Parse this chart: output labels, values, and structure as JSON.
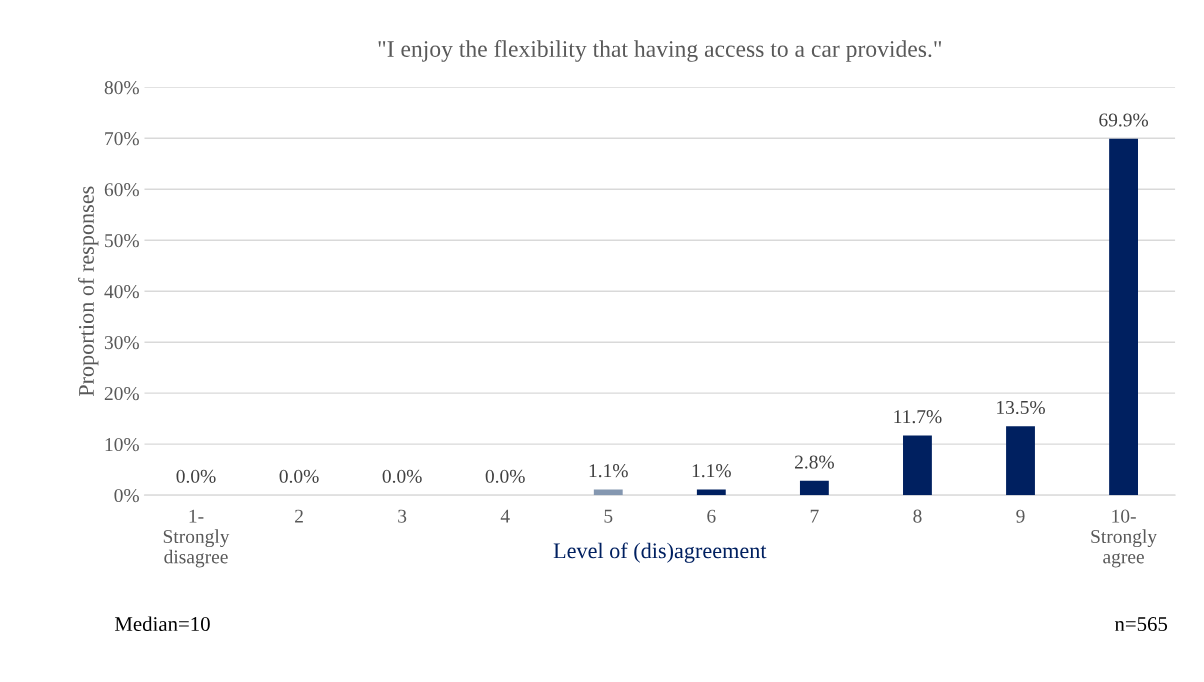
{
  "chart_data": {
    "type": "bar",
    "title": "\"I enjoy the flexibility that having access to a car provides.\"",
    "xlabel": "Level of (dis)agreement",
    "ylabel": "Proportion of responses",
    "categories": [
      "1-\nStrongly\ndisagree",
      "2",
      "3",
      "4",
      "5",
      "6",
      "7",
      "8",
      "9",
      "10-\nStrongly\nagree"
    ],
    "values": [
      0.0,
      0.0,
      0.0,
      0.0,
      1.1,
      1.1,
      2.8,
      11.7,
      13.5,
      69.9
    ],
    "value_labels": [
      "0.0%",
      "0.0%",
      "0.0%",
      "0.0%",
      "1.1%",
      "1.1%",
      "2.8%",
      "11.7%",
      "13.5%",
      "69.9%"
    ],
    "colors": [
      "#8497b0",
      "#8497b0",
      "#8497b0",
      "#8497b0",
      "#8497b0",
      "#002060",
      "#002060",
      "#002060",
      "#002060",
      "#002060"
    ],
    "ylim": [
      0,
      80
    ],
    "yticks": [
      {
        "value": 0,
        "label": "0%"
      },
      {
        "value": 10,
        "label": "10%"
      },
      {
        "value": 20,
        "label": "20%"
      },
      {
        "value": 30,
        "label": "30%"
      },
      {
        "value": 40,
        "label": "40%"
      },
      {
        "value": 50,
        "label": "50%"
      },
      {
        "value": 60,
        "label": "60%"
      },
      {
        "value": 70,
        "label": "70%"
      },
      {
        "value": 80,
        "label": "80%"
      }
    ],
    "grid": "y",
    "legend": false,
    "annotations": [
      "Median=10",
      "n=565"
    ]
  }
}
